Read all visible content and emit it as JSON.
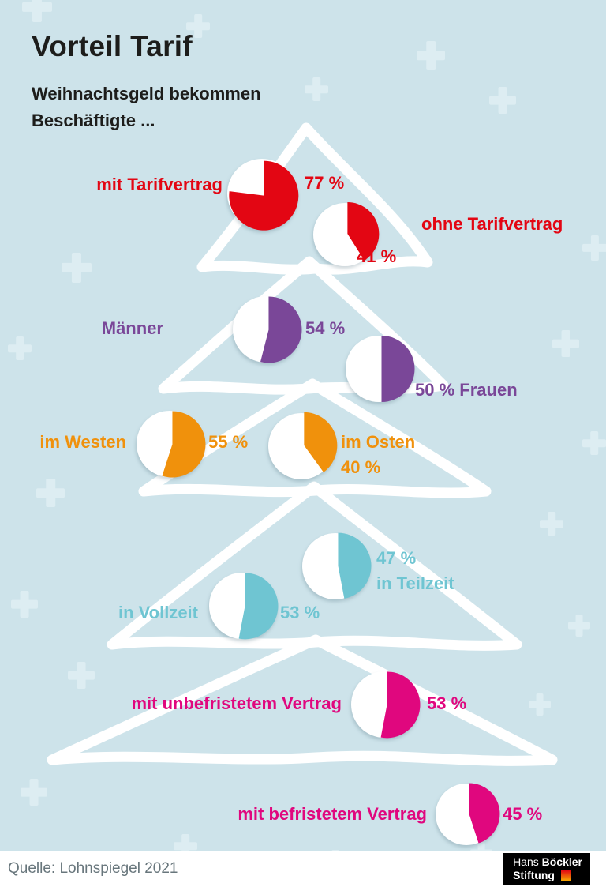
{
  "header": {
    "title": "Vorteil Tarif",
    "subtitle_line1": "Weihnachtsgeld bekommen",
    "subtitle_line2": "Beschäftigte ..."
  },
  "chart_data": {
    "type": "pie",
    "title": "Vorteil Tarif",
    "subtitle": "Weihnachtsgeld bekommen Beschäftigte ...",
    "unit": "%",
    "note": "share of employees receiving a Christmas bonus, wedge drawn clockwise from 12 o'clock",
    "groups": [
      {
        "label": "mit Tarifvertrag",
        "value": 77,
        "value_label": "77 %",
        "color": "#e30613"
      },
      {
        "label": "ohne Tarifvertrag",
        "value": 41,
        "value_label": "41 %",
        "color": "#e30613"
      },
      {
        "label": "Männer",
        "value": 54,
        "value_label": "54 %",
        "color": "#7a4798"
      },
      {
        "label": "Frauen",
        "value": 50,
        "value_label": "50 %",
        "color": "#7a4798"
      },
      {
        "label": "im Westen",
        "value": 55,
        "value_label": "55 %",
        "color": "#f0910c"
      },
      {
        "label": "im Osten",
        "value": 40,
        "value_label": "40 %",
        "color": "#f0910c"
      },
      {
        "label": "in Teilzeit",
        "value": 47,
        "value_label": "47 %",
        "color": "#6fc5d2"
      },
      {
        "label": "in Vollzeit",
        "value": 53,
        "value_label": "53 %",
        "color": "#6fc5d2"
      },
      {
        "label": "mit unbefristetem Vertrag",
        "value": 53,
        "value_label": "53 %",
        "color": "#e0077e"
      },
      {
        "label": "mit befristetem Vertrag",
        "value": 45,
        "value_label": "45 %",
        "color": "#e0077e"
      }
    ],
    "source": "Quelle: Lohnspiegel 2021"
  },
  "footer": {
    "source": "Quelle: Lohnspiegel 2021",
    "logo": {
      "line1_normal": "Hans",
      "line1_bold": "Böckler",
      "line2": "Stiftung"
    }
  }
}
